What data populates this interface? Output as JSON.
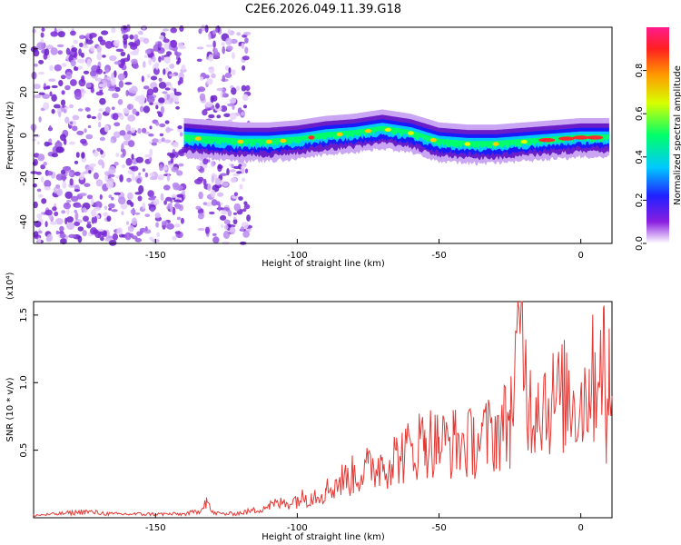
{
  "chart_data": [
    {
      "type": "heatmap",
      "title": "C2E6.2026.049.11.39.G18",
      "xlabel": "Height of straight line (km)",
      "ylabel": "Frequency (Hz)",
      "xlim": [
        -193,
        11
      ],
      "ylim": [
        -50,
        50
      ],
      "x_ticks": [
        -150,
        -100,
        -50,
        0
      ],
      "y_ticks": [
        -40,
        -20,
        0,
        20,
        40
      ],
      "colorbar": {
        "label": "Normalized spectral amplitude",
        "range": [
          0.0,
          1.0
        ],
        "ticks": [
          "0.0",
          "0.2",
          "0.4",
          "0.6",
          "0.8"
        ],
        "tick_values": [
          0.0,
          0.2,
          0.4,
          0.6,
          0.8
        ]
      },
      "regions": [
        {
          "name": "scattered-noise",
          "x_range": [
            -193,
            -140
          ],
          "freq_range": [
            -50,
            50
          ],
          "amplitude": 0.15
        },
        {
          "name": "scattered-noise",
          "x_range": [
            -135,
            -117
          ],
          "freq_range": [
            -50,
            50
          ],
          "amplitude": 0.15
        },
        {
          "name": "signal-trace",
          "x_range": [
            -140,
            11
          ],
          "amplitude_range": [
            0.3,
            1.0
          ]
        }
      ],
      "signal_trace": {
        "x": [
          -140,
          -130,
          -120,
          -110,
          -100,
          -90,
          -80,
          -70,
          -60,
          -50,
          -40,
          -30,
          -20,
          -10,
          0,
          10
        ],
        "freq": [
          -1,
          -2,
          -3,
          -3,
          -2,
          0,
          1,
          3,
          1,
          -3,
          -4,
          -4,
          -3,
          -2,
          -1,
          -1
        ]
      },
      "colors": {
        "low": "#7b00d4",
        "mid": "#00c8ff",
        "high": "#ff2a2a"
      }
    },
    {
      "type": "line",
      "xlabel": "Height of straight line (km)",
      "ylabel": "SNR (10 * v/v)",
      "y_scale_label": "(x10⁴)",
      "xlim": [
        -193,
        11
      ],
      "ylim": [
        0,
        1.6
      ],
      "x_ticks": [
        -150,
        -100,
        -50,
        0
      ],
      "y_ticks": [
        "0.5",
        "1.0",
        "1.5"
      ],
      "y_tick_values": [
        0.5,
        1.0,
        1.5
      ],
      "series": [
        {
          "name": "SNR",
          "color": "#e53935",
          "x": [
            -193,
            -185,
            -175,
            -165,
            -155,
            -145,
            -140,
            -135,
            -132,
            -130,
            -125,
            -120,
            -115,
            -110,
            -105,
            -100,
            -95,
            -90,
            -85,
            -80,
            -75,
            -70,
            -65,
            -60,
            -55,
            -50,
            -45,
            -40,
            -35,
            -30,
            -25,
            -21,
            -18,
            -15,
            -10,
            -5,
            0,
            3,
            5,
            8,
            9,
            10,
            11
          ],
          "values": [
            0.02,
            0.03,
            0.05,
            0.03,
            0.03,
            0.03,
            0.03,
            0.05,
            0.15,
            0.04,
            0.03,
            0.04,
            0.06,
            0.1,
            0.12,
            0.15,
            0.18,
            0.22,
            0.3,
            0.35,
            0.4,
            0.45,
            0.5,
            0.55,
            0.65,
            0.6,
            0.62,
            0.6,
            0.65,
            0.7,
            0.8,
            1.6,
            0.9,
            1.0,
            0.95,
            1.0,
            0.95,
            1.1,
            1.15,
            1.55,
            0.4,
            1.4,
            0.9
          ]
        }
      ]
    }
  ]
}
